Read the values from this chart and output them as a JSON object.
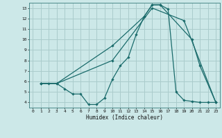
{
  "xlabel": "Humidex (Indice chaleur)",
  "bg_color": "#cce8e8",
  "grid_color": "#aacccc",
  "line_color": "#1a6b6b",
  "xlim": [
    -0.5,
    23.5
  ],
  "ylim": [
    3.5,
    13.5
  ],
  "xticks": [
    0,
    1,
    2,
    3,
    4,
    5,
    6,
    7,
    8,
    9,
    10,
    11,
    12,
    13,
    14,
    15,
    16,
    17,
    18,
    19,
    20,
    21,
    22,
    23
  ],
  "yticks": [
    4,
    5,
    6,
    7,
    8,
    9,
    10,
    11,
    12,
    13
  ],
  "line1_x": [
    1,
    2,
    3,
    4,
    5,
    6,
    7,
    8,
    9,
    10,
    11,
    12,
    13,
    14,
    15,
    16,
    17,
    18,
    19,
    20,
    21,
    22,
    23
  ],
  "line1_y": [
    5.8,
    5.8,
    5.8,
    5.3,
    4.8,
    4.8,
    3.8,
    3.8,
    4.4,
    6.2,
    7.5,
    8.3,
    10.5,
    12.2,
    13.3,
    13.3,
    12.9,
    5.0,
    4.2,
    4.1,
    4.0,
    4.0,
    4.0
  ],
  "line2_x": [
    1,
    3,
    10,
    14,
    15,
    16,
    20,
    21,
    23
  ],
  "line2_y": [
    5.8,
    5.8,
    9.4,
    12.2,
    13.3,
    13.3,
    10.0,
    7.5,
    4.0
  ],
  "line3_x": [
    1,
    3,
    10,
    15,
    19,
    23
  ],
  "line3_y": [
    5.8,
    5.8,
    8.0,
    13.0,
    11.8,
    4.0
  ]
}
